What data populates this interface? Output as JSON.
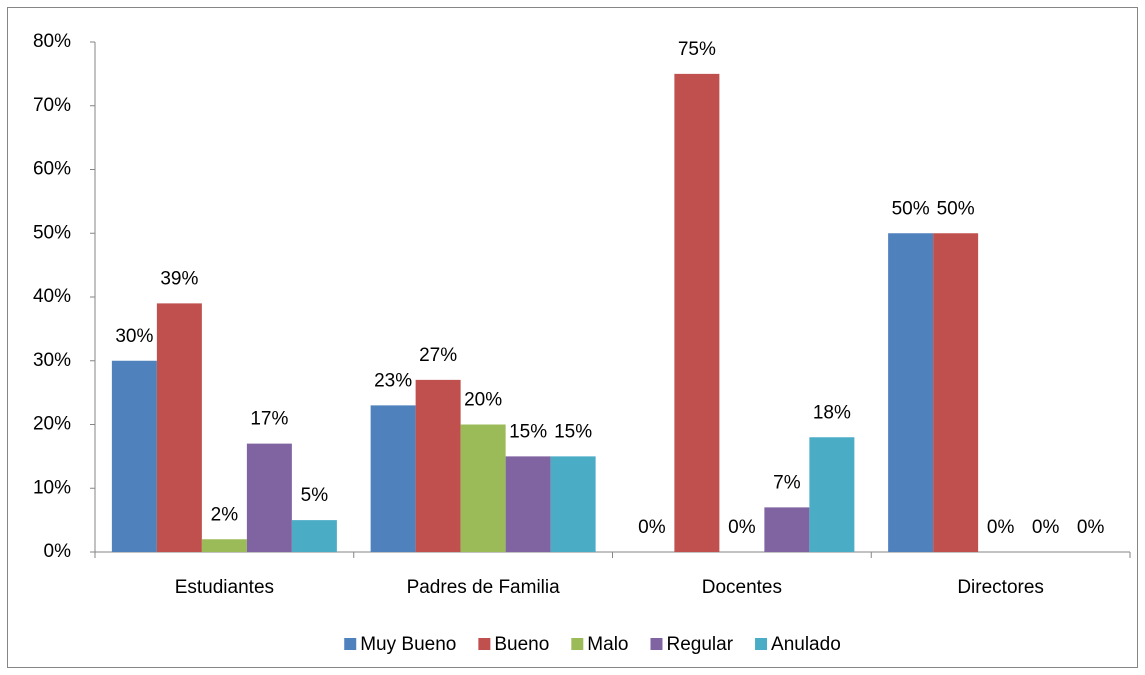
{
  "chart_data": {
    "type": "bar",
    "categories": [
      "Estudiantes",
      "Padres de Familia",
      "Docentes",
      "Directores"
    ],
    "series": [
      {
        "name": "Muy Bueno",
        "color": "#4f81bd",
        "values": [
          30,
          23,
          0,
          50
        ],
        "value_labels": [
          "30%",
          "23%",
          "0%",
          "50%"
        ]
      },
      {
        "name": "Bueno",
        "color": "#c0504d",
        "values": [
          39,
          27,
          75,
          50
        ],
        "value_labels": [
          "39%",
          "27%",
          "75%",
          "50%"
        ]
      },
      {
        "name": "Malo",
        "color": "#9bbb59",
        "values": [
          2,
          20,
          0,
          0
        ],
        "value_labels": [
          "2%",
          "20%",
          "0%",
          "0%"
        ]
      },
      {
        "name": "Regular",
        "color": "#8064a2",
        "values": [
          17,
          15,
          7,
          0
        ],
        "value_labels": [
          "17%",
          "15%",
          "7%",
          "0%"
        ]
      },
      {
        "name": "Anulado",
        "color": "#4bacc6",
        "values": [
          5,
          15,
          18,
          0
        ],
        "value_labels": [
          "5%",
          "15%",
          "18%",
          "0%"
        ]
      }
    ],
    "ylim": [
      0,
      80
    ],
    "yticks": [
      {
        "value": 0,
        "label": "0%"
      },
      {
        "value": 10,
        "label": "10%"
      },
      {
        "value": 20,
        "label": "20%"
      },
      {
        "value": 30,
        "label": "30%"
      },
      {
        "value": 40,
        "label": "40%"
      },
      {
        "value": 50,
        "label": "50%"
      },
      {
        "value": 60,
        "label": "60%"
      },
      {
        "value": 70,
        "label": "70%"
      },
      {
        "value": 80,
        "label": "80%"
      }
    ],
    "grid": false,
    "legend": "bottom"
  }
}
